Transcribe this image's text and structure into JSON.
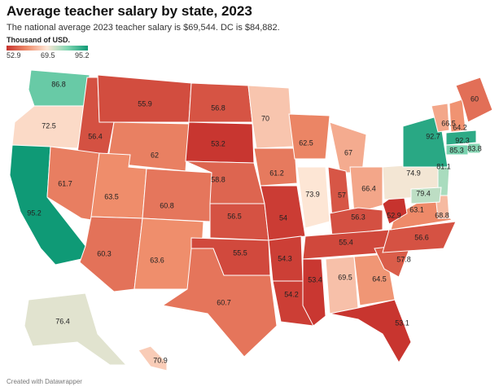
{
  "title": "Average teacher salary by state, 2023",
  "subtitle": "The national average 2023 teacher salary is $69,544. DC is $84,882.",
  "legend": {
    "title": "Thousand of USD.",
    "min": "52.9",
    "mid": "69.5",
    "max": "95.2"
  },
  "footer": "Created with Datawrapper",
  "colors": {
    "low": "#c7332e",
    "high": "#0f9a76",
    "border": "#ffffff"
  },
  "states": [
    {
      "id": "WA",
      "value": "86.8"
    },
    {
      "id": "OR",
      "value": "72.5"
    },
    {
      "id": "CA",
      "value": "95.2"
    },
    {
      "id": "ID",
      "value": "56.4"
    },
    {
      "id": "NV",
      "value": "61.7"
    },
    {
      "id": "MT",
      "value": "55.9"
    },
    {
      "id": "WY",
      "value": "62"
    },
    {
      "id": "UT",
      "value": "63.5"
    },
    {
      "id": "AZ",
      "value": "60.3"
    },
    {
      "id": "CO",
      "value": "60.8"
    },
    {
      "id": "NM",
      "value": "63.6"
    },
    {
      "id": "ND",
      "value": "56.8"
    },
    {
      "id": "SD",
      "value": "53.2"
    },
    {
      "id": "NE",
      "value": "58.8"
    },
    {
      "id": "KS",
      "value": "56.5"
    },
    {
      "id": "OK",
      "value": "55.5"
    },
    {
      "id": "TX",
      "value": "60.7"
    },
    {
      "id": "MN",
      "value": "70"
    },
    {
      "id": "IA",
      "value": "61.2"
    },
    {
      "id": "MO",
      "value": "54"
    },
    {
      "id": "AR",
      "value": "54.3"
    },
    {
      "id": "LA",
      "value": "54.2"
    },
    {
      "id": "WI",
      "value": "62.5"
    },
    {
      "id": "IL",
      "value": "73.9"
    },
    {
      "id": "MI",
      "value": "67"
    },
    {
      "id": "IN",
      "value": "57"
    },
    {
      "id": "OH",
      "value": "66.4"
    },
    {
      "id": "KY",
      "value": "56.3"
    },
    {
      "id": "TN",
      "value": "55.4"
    },
    {
      "id": "MS",
      "value": "53.4"
    },
    {
      "id": "AL",
      "value": "69.5"
    },
    {
      "id": "GA",
      "value": "64.5"
    },
    {
      "id": "FL",
      "value": "53.1"
    },
    {
      "id": "SC",
      "value": "57.8"
    },
    {
      "id": "NC",
      "value": "56.6"
    },
    {
      "id": "VA",
      "value": "63.1"
    },
    {
      "id": "WV",
      "value": "52.9"
    },
    {
      "id": "PA",
      "value": "74.9"
    },
    {
      "id": "NY",
      "value": "92.7"
    },
    {
      "id": "VT",
      "value": "66.5"
    },
    {
      "id": "NH",
      "value": "64.2"
    },
    {
      "id": "ME",
      "value": "60"
    },
    {
      "id": "MA",
      "value": "92.3"
    },
    {
      "id": "RI",
      "value": "83.8"
    },
    {
      "id": "CT",
      "value": "85.3"
    },
    {
      "id": "NJ",
      "value": "81.1"
    },
    {
      "id": "DE",
      "value": "68.8"
    },
    {
      "id": "MD",
      "value": "79.4"
    },
    {
      "id": "AK",
      "value": "76.4"
    },
    {
      "id": "HI",
      "value": "70.9"
    }
  ]
}
